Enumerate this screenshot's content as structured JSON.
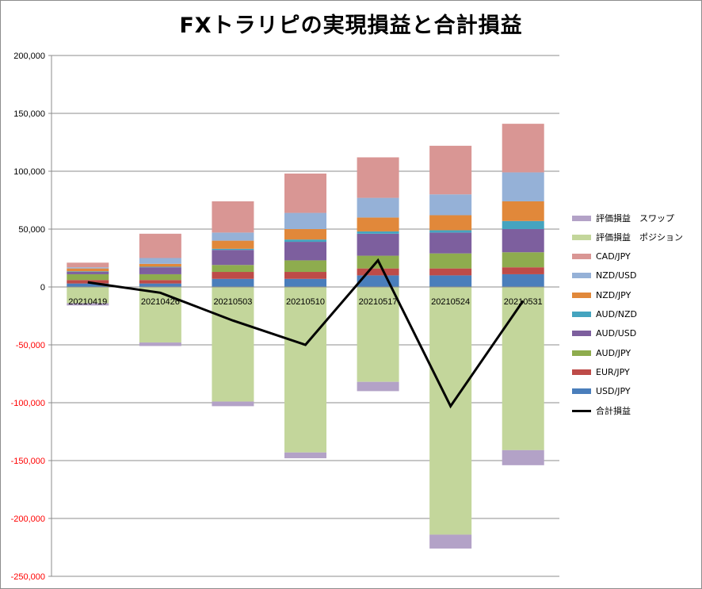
{
  "chart_data": {
    "type": "bar",
    "title": "FXトラリピの実現損益と合計損益",
    "xlabel": "",
    "ylabel": "",
    "ylim": [
      -250000,
      200000
    ],
    "yticks": [
      200000,
      150000,
      100000,
      50000,
      0,
      -50000,
      -100000,
      -150000,
      -200000,
      -250000
    ],
    "ytick_labels": [
      "200,000",
      "150,000",
      "100,000",
      "50,000",
      "0",
      "-50,000",
      "-100,000",
      "-150,000",
      "-200,000",
      "-250,000"
    ],
    "negative_tick_color": "#ff0000",
    "positive_tick_color": "#000000",
    "grid": true,
    "legend_position": "right",
    "categories": [
      "20210419",
      "20210426",
      "20210503",
      "20210510",
      "20210517",
      "20210524",
      "20210531"
    ],
    "stacked_positive": [
      {
        "name": "USD/JPY",
        "color": "#4a7ebb",
        "values": [
          3000,
          3000,
          7000,
          7000,
          10000,
          10000,
          11000
        ]
      },
      {
        "name": "EUR/JPY",
        "color": "#be4b48",
        "values": [
          3000,
          3000,
          6000,
          6000,
          6000,
          6000,
          6000
        ]
      },
      {
        "name": "AUD/JPY",
        "color": "#8eac4e",
        "values": [
          5000,
          5000,
          6000,
          10000,
          11000,
          13000,
          13000
        ]
      },
      {
        "name": "AUD/USD",
        "color": "#7d5f9e",
        "values": [
          2000,
          6000,
          13000,
          16000,
          19000,
          18000,
          20000
        ]
      },
      {
        "name": "AUD/NZD",
        "color": "#45a4bf",
        "values": [
          500,
          500,
          1000,
          2000,
          2000,
          2000,
          7000
        ]
      },
      {
        "name": "NZD/JPY",
        "color": "#e1883a",
        "values": [
          2500,
          2500,
          7000,
          9000,
          12000,
          13000,
          17000
        ]
      },
      {
        "name": "NZD/USD",
        "color": "#95b1d7",
        "values": [
          1000,
          5000,
          7000,
          14000,
          17000,
          18000,
          25000
        ]
      },
      {
        "name": "CAD/JPY",
        "color": "#d99694",
        "values": [
          4000,
          21000,
          27000,
          34000,
          35000,
          42000,
          42000
        ]
      }
    ],
    "stacked_negative": [
      {
        "name": "評価損益　ポジション",
        "color": "#c3d69b",
        "values": [
          -14000,
          -48000,
          -99000,
          -143000,
          -82000,
          -214000,
          -141000
        ]
      },
      {
        "name": "評価損益　スワップ",
        "color": "#b3a2c7",
        "values": [
          -2000,
          -3000,
          -4000,
          -5000,
          -8000,
          -12000,
          -13000
        ]
      }
    ],
    "line": {
      "name": "合計損益",
      "color": "#000000",
      "values": [
        4000,
        -5000,
        -29000,
        -50000,
        23000,
        -103000,
        -12000
      ]
    },
    "legend_order": [
      "評価損益　スワップ",
      "評価損益　ポジション",
      "CAD/JPY",
      "NZD/USD",
      "NZD/JPY",
      "AUD/NZD",
      "AUD/USD",
      "AUD/JPY",
      "EUR/JPY",
      "USD/JPY",
      "合計損益"
    ]
  }
}
